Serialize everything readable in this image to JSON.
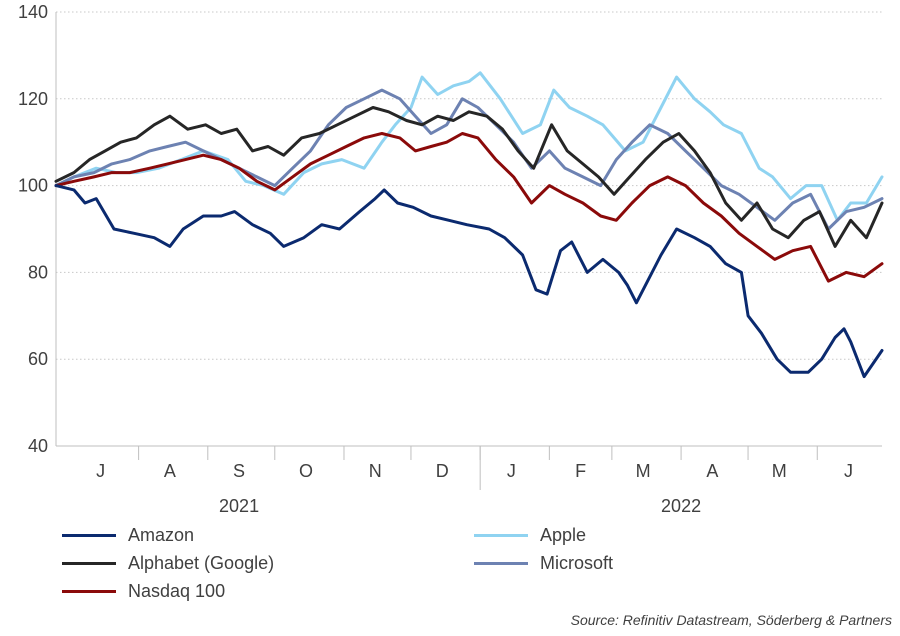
{
  "chart_data": {
    "type": "line",
    "title": "",
    "xlabel": "",
    "ylabel": "",
    "ylim": [
      40,
      140
    ],
    "yticks": [
      40,
      60,
      80,
      100,
      120,
      140
    ],
    "grid": "horizontal dotted",
    "legend_placement": "bottom",
    "x_start": "2021-06-25",
    "x_end": "2022-06-30",
    "month_labels": [
      {
        "label": "J",
        "date": "2021-07-15"
      },
      {
        "label": "A",
        "date": "2021-08-15"
      },
      {
        "label": "S",
        "date": "2021-09-15"
      },
      {
        "label": "O",
        "date": "2021-10-15"
      },
      {
        "label": "N",
        "date": "2021-11-15"
      },
      {
        "label": "D",
        "date": "2021-12-15"
      },
      {
        "label": "J",
        "date": "2022-01-15"
      },
      {
        "label": "F",
        "date": "2022-02-15"
      },
      {
        "label": "M",
        "date": "2022-03-15"
      },
      {
        "label": "A",
        "date": "2022-04-15"
      },
      {
        "label": "M",
        "date": "2022-05-15"
      },
      {
        "label": "J",
        "date": "2022-06-15"
      }
    ],
    "month_boundaries": [
      "2021-08-01",
      "2021-09-01",
      "2021-10-01",
      "2021-11-01",
      "2021-12-01",
      "2022-01-01",
      "2022-02-01",
      "2022-03-01",
      "2022-04-01",
      "2022-05-01",
      "2022-06-01"
    ],
    "year_labels": [
      {
        "label": "2021",
        "date": "2021-09-15"
      },
      {
        "label": "2022",
        "date": "2022-04-01"
      }
    ],
    "series": [
      {
        "name": "Amazon",
        "color": "#0b2a6f",
        "x": [
          "2021-06-25",
          "2021-07-03",
          "2021-07-08",
          "2021-07-13",
          "2021-07-21",
          "2021-07-30",
          "2021-08-08",
          "2021-08-15",
          "2021-08-21",
          "2021-08-30",
          "2021-09-07",
          "2021-09-13",
          "2021-09-21",
          "2021-09-29",
          "2021-10-05",
          "2021-10-14",
          "2021-10-22",
          "2021-10-30",
          "2021-11-08",
          "2021-11-15",
          "2021-11-19",
          "2021-11-25",
          "2021-12-02",
          "2021-12-10",
          "2021-12-18",
          "2021-12-26",
          "2022-01-05",
          "2022-01-12",
          "2022-01-20",
          "2022-01-26",
          "2022-01-31",
          "2022-02-03",
          "2022-02-06",
          "2022-02-11",
          "2022-02-18",
          "2022-02-25",
          "2022-03-04",
          "2022-03-08",
          "2022-03-12",
          "2022-03-17",
          "2022-03-23",
          "2022-03-30",
          "2022-04-07",
          "2022-04-14",
          "2022-04-21",
          "2022-04-28",
          "2022-05-01",
          "2022-05-07",
          "2022-05-14",
          "2022-05-20",
          "2022-05-28",
          "2022-06-03",
          "2022-06-09",
          "2022-06-13",
          "2022-06-16",
          "2022-06-22",
          "2022-06-30"
        ],
        "values": [
          100,
          99,
          96,
          97,
          90,
          89,
          88,
          86,
          90,
          93,
          93,
          94,
          91,
          89,
          86,
          88,
          91,
          90,
          94,
          97,
          99,
          96,
          95,
          93,
          92,
          91,
          90,
          88,
          84,
          76,
          75,
          80,
          85,
          87,
          80,
          83,
          80,
          77,
          73,
          78,
          84,
          90,
          88,
          86,
          82,
          80,
          70,
          66,
          60,
          57,
          57,
          60,
          65,
          67,
          64,
          56,
          62
        ]
      },
      {
        "name": "Apple",
        "color": "#8fd3f1",
        "x": [
          "2021-06-25",
          "2021-07-03",
          "2021-07-13",
          "2021-07-22",
          "2021-07-31",
          "2021-08-10",
          "2021-08-20",
          "2021-08-30",
          "2021-09-10",
          "2021-09-18",
          "2021-09-26",
          "2021-10-05",
          "2021-10-14",
          "2021-10-22",
          "2021-10-31",
          "2021-11-10",
          "2021-11-18",
          "2021-11-24",
          "2021-12-01",
          "2021-12-06",
          "2021-12-13",
          "2021-12-20",
          "2021-12-27",
          "2022-01-01",
          "2022-01-10",
          "2022-01-20",
          "2022-01-28",
          "2022-02-03",
          "2022-02-10",
          "2022-02-18",
          "2022-02-25",
          "2022-03-07",
          "2022-03-15",
          "2022-03-23",
          "2022-03-30",
          "2022-04-07",
          "2022-04-14",
          "2022-04-20",
          "2022-04-28",
          "2022-05-06",
          "2022-05-12",
          "2022-05-20",
          "2022-05-27",
          "2022-06-03",
          "2022-06-10",
          "2022-06-16",
          "2022-06-23",
          "2022-06-30"
        ],
        "values": [
          100,
          102,
          104,
          103,
          103,
          104,
          106,
          108,
          106,
          101,
          100,
          98,
          103,
          105,
          106,
          104,
          110,
          114,
          118,
          125,
          121,
          123,
          124,
          126,
          120,
          112,
          114,
          122,
          118,
          116,
          114,
          108,
          110,
          118,
          125,
          120,
          117,
          114,
          112,
          104,
          102,
          97,
          100,
          100,
          92,
          96,
          96,
          102
        ]
      },
      {
        "name": "Alphabet (Google)",
        "color": "#262626",
        "x": [
          "2021-06-25",
          "2021-07-03",
          "2021-07-10",
          "2021-07-17",
          "2021-07-24",
          "2021-07-31",
          "2021-08-08",
          "2021-08-15",
          "2021-08-23",
          "2021-08-31",
          "2021-09-07",
          "2021-09-14",
          "2021-09-21",
          "2021-09-28",
          "2021-10-05",
          "2021-10-13",
          "2021-10-21",
          "2021-10-29",
          "2021-11-06",
          "2021-11-14",
          "2021-11-21",
          "2021-11-29",
          "2021-12-06",
          "2021-12-13",
          "2021-12-20",
          "2021-12-27",
          "2022-01-04",
          "2022-01-11",
          "2022-01-18",
          "2022-01-25",
          "2022-02-02",
          "2022-02-09",
          "2022-02-16",
          "2022-02-23",
          "2022-03-02",
          "2022-03-09",
          "2022-03-16",
          "2022-03-24",
          "2022-03-31",
          "2022-04-07",
          "2022-04-14",
          "2022-04-21",
          "2022-04-28",
          "2022-05-05",
          "2022-05-12",
          "2022-05-19",
          "2022-05-26",
          "2022-06-02",
          "2022-06-09",
          "2022-06-16",
          "2022-06-23",
          "2022-06-30"
        ],
        "values": [
          101,
          103,
          106,
          108,
          110,
          111,
          114,
          116,
          113,
          114,
          112,
          113,
          108,
          109,
          107,
          111,
          112,
          114,
          116,
          118,
          117,
          115,
          114,
          116,
          115,
          117,
          116,
          113,
          108,
          104,
          114,
          108,
          105,
          102,
          98,
          102,
          106,
          110,
          112,
          108,
          103,
          96,
          92,
          96,
          90,
          88,
          92,
          94,
          86,
          92,
          88,
          96
        ]
      },
      {
        "name": "Microsoft",
        "color": "#6d82b2",
        "x": [
          "2021-06-25",
          "2021-07-03",
          "2021-07-12",
          "2021-07-20",
          "2021-07-28",
          "2021-08-06",
          "2021-08-14",
          "2021-08-22",
          "2021-08-30",
          "2021-09-07",
          "2021-09-15",
          "2021-09-23",
          "2021-10-01",
          "2021-10-09",
          "2021-10-17",
          "2021-10-25",
          "2021-11-02",
          "2021-11-10",
          "2021-11-18",
          "2021-11-26",
          "2021-12-03",
          "2021-12-10",
          "2021-12-17",
          "2021-12-24",
          "2021-12-31",
          "2022-01-08",
          "2022-01-16",
          "2022-01-24",
          "2022-02-01",
          "2022-02-08",
          "2022-02-16",
          "2022-02-24",
          "2022-03-03",
          "2022-03-10",
          "2022-03-18",
          "2022-03-26",
          "2022-04-03",
          "2022-04-11",
          "2022-04-19",
          "2022-04-27",
          "2022-05-05",
          "2022-05-13",
          "2022-05-21",
          "2022-05-29",
          "2022-06-06",
          "2022-06-14",
          "2022-06-22",
          "2022-06-30"
        ],
        "values": [
          100,
          102,
          103,
          105,
          106,
          108,
          109,
          110,
          108,
          106,
          104,
          102,
          100,
          104,
          108,
          114,
          118,
          120,
          122,
          120,
          116,
          112,
          114,
          120,
          118,
          114,
          110,
          104,
          108,
          104,
          102,
          100,
          106,
          110,
          114,
          112,
          108,
          104,
          100,
          98,
          95,
          92,
          96,
          98,
          90,
          94,
          95,
          97
        ]
      },
      {
        "name": "Nasdaq 100",
        "color": "#8b0a0a",
        "x": [
          "2021-06-25",
          "2021-07-03",
          "2021-07-12",
          "2021-07-20",
          "2021-07-28",
          "2021-08-06",
          "2021-08-14",
          "2021-08-22",
          "2021-08-30",
          "2021-09-07",
          "2021-09-15",
          "2021-09-23",
          "2021-10-01",
          "2021-10-09",
          "2021-10-17",
          "2021-10-25",
          "2021-11-02",
          "2021-11-10",
          "2021-11-18",
          "2021-11-26",
          "2021-12-03",
          "2021-12-10",
          "2021-12-17",
          "2021-12-24",
          "2021-12-31",
          "2022-01-08",
          "2022-01-16",
          "2022-01-24",
          "2022-02-01",
          "2022-02-08",
          "2022-02-16",
          "2022-02-24",
          "2022-03-03",
          "2022-03-10",
          "2022-03-18",
          "2022-03-26",
          "2022-04-03",
          "2022-04-11",
          "2022-04-19",
          "2022-04-27",
          "2022-05-05",
          "2022-05-13",
          "2022-05-21",
          "2022-05-29",
          "2022-06-06",
          "2022-06-14",
          "2022-06-22",
          "2022-06-30"
        ],
        "values": [
          100,
          101,
          102,
          103,
          103,
          104,
          105,
          106,
          107,
          106,
          104,
          101,
          99,
          102,
          105,
          107,
          109,
          111,
          112,
          111,
          108,
          109,
          110,
          112,
          111,
          106,
          102,
          96,
          100,
          98,
          96,
          93,
          92,
          96,
          100,
          102,
          100,
          96,
          93,
          89,
          86,
          83,
          85,
          86,
          78,
          80,
          79,
          82
        ]
      }
    ]
  },
  "legend": {
    "items": [
      {
        "label": "Amazon",
        "color": "#0b2a6f"
      },
      {
        "label": "Apple",
        "color": "#8fd3f1"
      },
      {
        "label": "Alphabet (Google)",
        "color": "#262626"
      },
      {
        "label": "Microsoft",
        "color": "#6d82b2"
      },
      {
        "label": "Nasdaq 100",
        "color": "#8b0a0a"
      }
    ]
  },
  "source": "Source: Refinitiv Datastream, Söderberg & Partners"
}
